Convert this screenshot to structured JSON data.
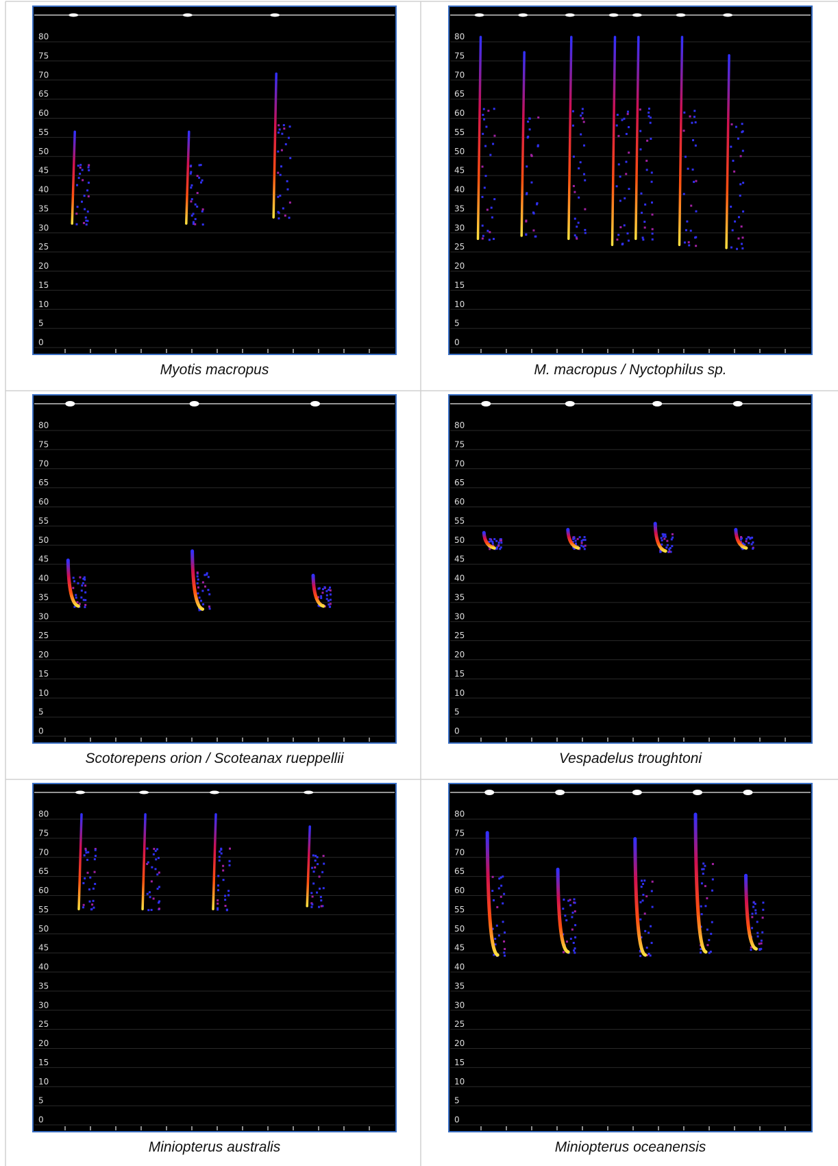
{
  "panels": [
    {
      "caption": "Myotis macropus"
    },
    {
      "caption": "M. macropus / Nyctophilus sp."
    },
    {
      "caption": "Scotorepens orion / Scoteanax rueppellii"
    },
    {
      "caption": "Vespadelus troughtoni"
    },
    {
      "caption": "Miniopterus australis"
    },
    {
      "caption": "Miniopterus oceanensis"
    }
  ],
  "yticks": [
    0,
    5,
    10,
    15,
    20,
    25,
    30,
    35,
    40,
    45,
    50,
    55,
    60,
    65,
    70,
    75,
    80
  ]
}
